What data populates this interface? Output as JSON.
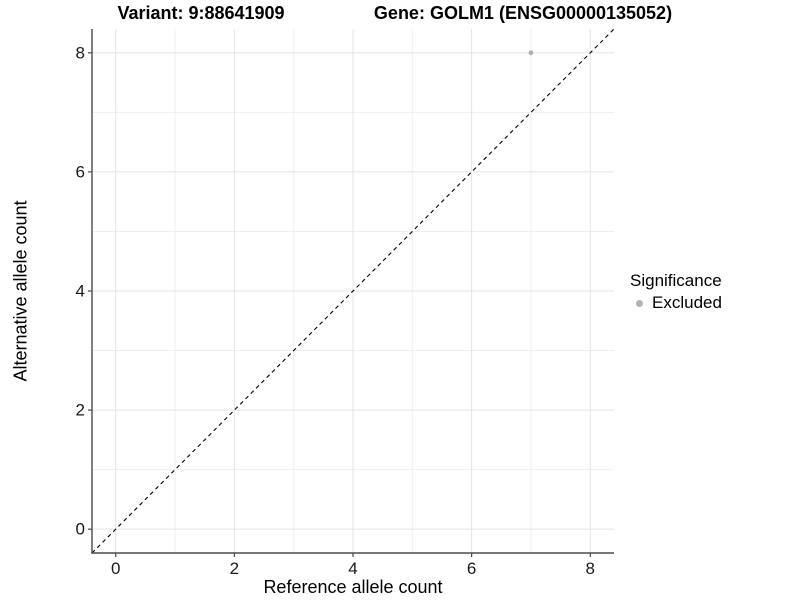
{
  "chart_data": {
    "type": "scatter",
    "title_left": "Variant: 9:88641909",
    "title_right": "Gene: GOLM1 (ENSG00000135052)",
    "xlabel": "Reference allele count",
    "ylabel": "Alternative allele count",
    "xlim": [
      -0.4,
      8.4
    ],
    "ylim": [
      -0.4,
      8.4
    ],
    "xticks": [
      0,
      2,
      4,
      6,
      8
    ],
    "yticks": [
      0,
      2,
      4,
      6,
      8
    ],
    "xminor": [
      1,
      3,
      5,
      7
    ],
    "yminor": [
      1,
      3,
      5,
      7
    ],
    "grid": "major+minor",
    "series": [
      {
        "name": "Excluded",
        "color": "#b2b2b2",
        "points": [
          {
            "x": 7,
            "y": 8
          }
        ]
      }
    ],
    "reference_line": {
      "type": "identity",
      "equation": "y = x",
      "style": "dashed",
      "color": "#000000",
      "from": [
        -0.4,
        -0.4
      ],
      "to": [
        8.4,
        8.4
      ]
    },
    "legend": {
      "title": "Significance",
      "position": "right",
      "entries": [
        {
          "label": "Excluded",
          "color": "#b2b2b2",
          "marker": "circle"
        }
      ]
    },
    "colors": {
      "background": "#ffffff",
      "grid_major": "#e4e4e4",
      "grid_minor": "#efefef",
      "axis_line": "#4a4a4a",
      "tick_text": "#1a1a1a",
      "text": "#000000"
    }
  }
}
